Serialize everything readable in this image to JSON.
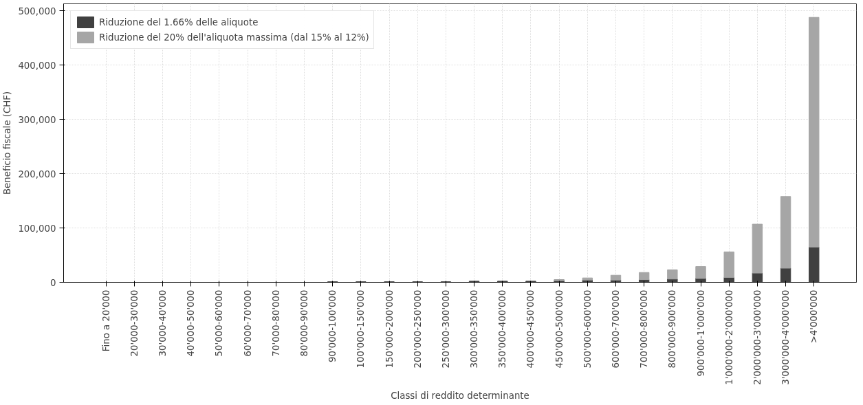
{
  "chart_data": {
    "type": "bar",
    "stacked": true,
    "xlabel": "Classi di reddito determinante",
    "ylabel": "Beneficio fiscale (CHF)",
    "categories": [
      "Fino a 20'000",
      "20'000-30'000",
      "30'000-40'000",
      "40'000-50'000",
      "50'000-60'000",
      "60'000-70'000",
      "70'000-80'000",
      "80'000-90'000",
      "90'000-100'000",
      "100'000-150'000",
      "150'000-200'000",
      "200'000-250'000",
      "250'000-300'000",
      "300'000-350'000",
      "350'000-400'000",
      "400'000-450'000",
      "450'000-500'000",
      "500'000-600'000",
      "600'000-700'000",
      "700'000-800'000",
      "800'000-900'000",
      "900'000-1'000'000",
      "1'000'000-2'000'000",
      "2'000'000-3'000'000",
      "3'000'000-4'000'000",
      ">4'000'000"
    ],
    "series": [
      {
        "name": "Riduzione del 1.66% delle aliquote",
        "color": "#404040",
        "values": [
          0,
          0,
          0,
          0,
          0,
          0,
          0,
          0,
          1000,
          1000,
          1000,
          1000,
          1000,
          2000,
          2000,
          2000,
          3000,
          4000,
          4000,
          5000,
          6000,
          7000,
          9000,
          17000,
          26000,
          65000
        ]
      },
      {
        "name": "Riduzione del 20% dell'aliquota massima (dal 15% al 12%)",
        "color": "#a6a6a6",
        "values": [
          null,
          null,
          null,
          null,
          null,
          null,
          null,
          null,
          null,
          null,
          null,
          null,
          null,
          null,
          null,
          null,
          2000,
          4000,
          9000,
          13000,
          17000,
          22000,
          47000,
          90000,
          132000,
          423000
        ]
      }
    ],
    "ylim": [
      0,
      513000
    ],
    "yticks": [
      {
        "value": 0,
        "label": "0"
      },
      {
        "value": 100000,
        "label": "100,000"
      },
      {
        "value": 200000,
        "label": "200,000"
      },
      {
        "value": 300000,
        "label": "300,000"
      },
      {
        "value": 400000,
        "label": "400,000"
      },
      {
        "value": 500000,
        "label": "500,000"
      }
    ],
    "grid": true,
    "legend": "top left"
  }
}
